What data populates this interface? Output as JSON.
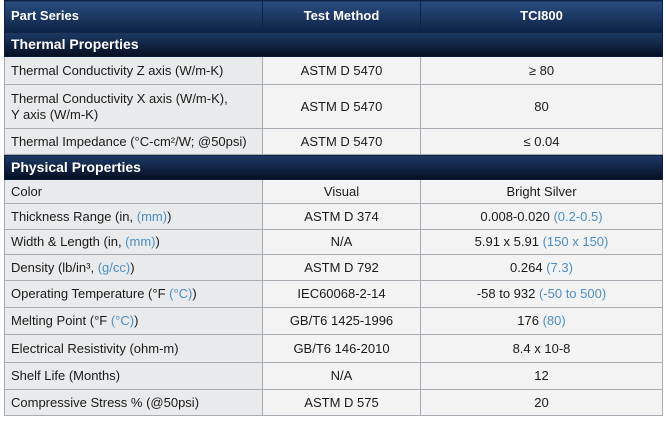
{
  "header": [
    "Part Series",
    "Test Method",
    "TCI800"
  ],
  "sections": [
    {
      "title": "Thermal Properties",
      "rows": [
        [
          [
            "Thermal Conductivity Z axis (W/m-K)"
          ],
          [
            "ASTM D 5470"
          ],
          [
            "≥ 80"
          ]
        ],
        [
          [
            "Thermal Conductivity X axis (W/m-K),\nY axis (W/m-K)"
          ],
          [
            "ASTM D 5470"
          ],
          [
            "80"
          ]
        ],
        [
          [
            "Thermal Impedance (°C-cm²/W; @50psi)"
          ],
          [
            "ASTM D 5470"
          ],
          [
            "≤ 0.04"
          ]
        ]
      ]
    },
    {
      "title": "Physical Properties",
      "rows": [
        [
          [
            "Color"
          ],
          [
            "Visual"
          ],
          [
            "Bright Silver"
          ]
        ],
        [
          [
            "Thickness Range (in, ",
            "(mm)",
            ")"
          ],
          [
            "ASTM D 374"
          ],
          [
            "0.008-0.020 ",
            "(0.2-0.5)"
          ]
        ],
        [
          [
            "Width & Length (in, ",
            "(mm)",
            ")"
          ],
          [
            "N/A"
          ],
          [
            "5.91 x 5.91 ",
            "(150 x 150)"
          ]
        ],
        [
          [
            "Density (lb/in³, ",
            "(g/cc)",
            ")"
          ],
          [
            "ASTM D 792"
          ],
          [
            "0.264 ",
            "(7.3)"
          ]
        ],
        [
          [
            "Operating Temperature (°F ",
            "(°C)",
            ")"
          ],
          [
            "IEC60068-2-14"
          ],
          [
            "-58 to 932 ",
            "(-50 to 500)"
          ]
        ],
        [
          [
            "Melting Point (°F ",
            "(°C)",
            ")"
          ],
          [
            "GB/T6 1425-1996"
          ],
          [
            "176 ",
            "(80)"
          ]
        ],
        [
          [
            "Electrical Resistivity (ohm-m)"
          ],
          [
            "GB/T6 146-2010"
          ],
          [
            "8.4 x 10-8"
          ]
        ],
        [
          [
            "Shelf Life (Months)"
          ],
          [
            "N/A"
          ],
          [
            "12"
          ]
        ],
        [
          [
            "Compressive Stress % (@50psi)"
          ],
          [
            "ASTM D 575"
          ],
          [
            "20"
          ]
        ]
      ]
    }
  ]
}
